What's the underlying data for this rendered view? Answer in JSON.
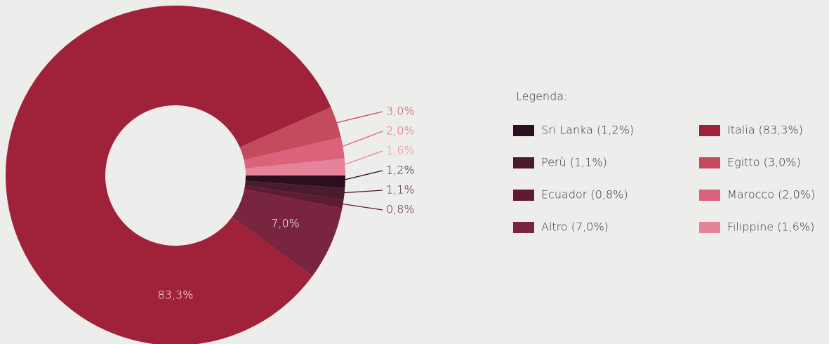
{
  "chart_data": {
    "type": "donut",
    "legend_title": "Legenda:",
    "categories": [
      "Sri Lanka (1,2%)",
      "Perù (1,1%)",
      "Ecuador (0,8%)",
      "Altro (7,0%)",
      "Italia (83,3%)",
      "Egitto (3,0%)",
      "Marocco (2,0%)",
      "Filippine (1,6%)"
    ],
    "values": [
      1.2,
      1.1,
      0.8,
      7.0,
      83.3,
      3.0,
      2.0,
      1.6
    ],
    "value_labels": [
      "1,2%",
      "1,1%",
      "0,8%",
      "7,0%",
      "83,3%",
      "3,0%",
      "2,0%",
      "1,6%"
    ],
    "colors": [
      "#2b0f1e",
      "#4a1a2d",
      "#5e1b31",
      "#7a2540",
      "#a0223a",
      "#c44b5e",
      "#da627b",
      "#e68299"
    ],
    "legend": "right"
  }
}
